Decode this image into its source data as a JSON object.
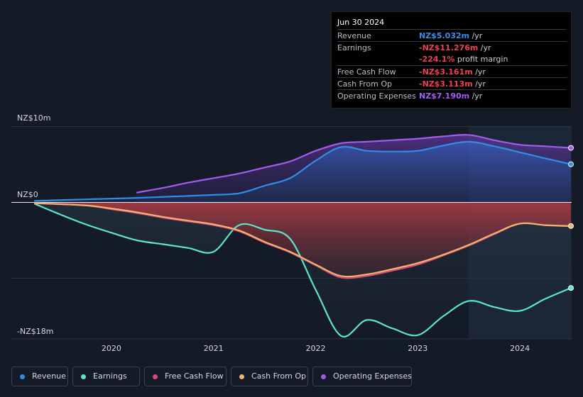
{
  "tooltip": {
    "date": "Jun 30 2024",
    "rows": [
      {
        "label": "Revenue",
        "value": "NZ$5.032m",
        "unit": " /yr",
        "color": "#3d8ee8"
      },
      {
        "label": "Earnings",
        "value": "-NZ$11.276m",
        "unit": " /yr",
        "color": "#f0404f"
      },
      {
        "label": "",
        "value": "-224.1%",
        "unit": " profit margin",
        "color": "#f0404f"
      },
      {
        "label": "Free Cash Flow",
        "value": "-NZ$3.161m",
        "unit": " /yr",
        "color": "#f0404f"
      },
      {
        "label": "Cash From Op",
        "value": "-NZ$3.113m",
        "unit": " /yr",
        "color": "#f0404f"
      },
      {
        "label": "Operating Expenses",
        "value": "NZ$7.190m",
        "unit": " /yr",
        "color": "#a55cf2"
      }
    ]
  },
  "legend": [
    {
      "label": "Revenue",
      "color": "#2f8fe8"
    },
    {
      "label": "Earnings",
      "color": "#5de3cf"
    },
    {
      "label": "Free Cash Flow",
      "color": "#d9487a"
    },
    {
      "label": "Cash From Op",
      "color": "#f0b46e"
    },
    {
      "label": "Operating Expenses",
      "color": "#a45af0"
    }
  ],
  "chart_data": {
    "type": "area",
    "title": "",
    "xlabel": "",
    "ylabel": "",
    "ylim": [
      -18,
      10
    ],
    "y_tick_labels": [
      {
        "value": 10,
        "label": "NZ$10m"
      },
      {
        "value": 0,
        "label": "NZ$0"
      },
      {
        "value": -18,
        "label": "-NZ$18m"
      }
    ],
    "x_tick_labels": [
      {
        "value": 2020,
        "label": "2020"
      },
      {
        "value": 2021,
        "label": "2021"
      },
      {
        "value": 2022,
        "label": "2022"
      },
      {
        "value": 2023,
        "label": "2023"
      },
      {
        "value": 2024,
        "label": "2024"
      }
    ],
    "xlim": [
      2019.0,
      2024.5
    ],
    "forecast_start": 2023.5,
    "series": [
      {
        "name": "Revenue",
        "color": "#2f8fe8",
        "points": [
          [
            2019.25,
            0.2
          ],
          [
            2019.75,
            0.4
          ],
          [
            2020.25,
            0.6
          ],
          [
            2020.75,
            0.85
          ],
          [
            2021.0,
            1.0
          ],
          [
            2021.25,
            1.2
          ],
          [
            2021.5,
            2.2
          ],
          [
            2021.75,
            3.2
          ],
          [
            2022.0,
            5.5
          ],
          [
            2022.25,
            7.3
          ],
          [
            2022.5,
            6.8
          ],
          [
            2022.75,
            6.7
          ],
          [
            2023.0,
            6.8
          ],
          [
            2023.25,
            7.5
          ],
          [
            2023.5,
            8.0
          ],
          [
            2023.75,
            7.4
          ],
          [
            2024.0,
            6.6
          ],
          [
            2024.25,
            5.8
          ],
          [
            2024.5,
            5.03
          ]
        ]
      },
      {
        "name": "Operating Expenses",
        "color": "#a45af0",
        "points": [
          [
            2020.25,
            1.3
          ],
          [
            2020.5,
            1.9
          ],
          [
            2020.75,
            2.6
          ],
          [
            2021.0,
            3.2
          ],
          [
            2021.25,
            3.8
          ],
          [
            2021.5,
            4.6
          ],
          [
            2021.75,
            5.4
          ],
          [
            2022.0,
            6.8
          ],
          [
            2022.25,
            7.8
          ],
          [
            2022.5,
            8.0
          ],
          [
            2022.75,
            8.2
          ],
          [
            2023.0,
            8.4
          ],
          [
            2023.25,
            8.7
          ],
          [
            2023.5,
            8.9
          ],
          [
            2023.75,
            8.2
          ],
          [
            2024.0,
            7.6
          ],
          [
            2024.25,
            7.4
          ],
          [
            2024.5,
            7.19
          ]
        ]
      },
      {
        "name": "Earnings",
        "color": "#5de3cf",
        "points": [
          [
            2019.25,
            -0.2
          ],
          [
            2019.5,
            -1.6
          ],
          [
            2019.75,
            -2.9
          ],
          [
            2020.0,
            -4.0
          ],
          [
            2020.25,
            -5.0
          ],
          [
            2020.5,
            -5.5
          ],
          [
            2020.75,
            -6.0
          ],
          [
            2021.0,
            -6.5
          ],
          [
            2021.25,
            -3.0
          ],
          [
            2021.5,
            -3.6
          ],
          [
            2021.75,
            -4.8
          ],
          [
            2022.0,
            -11.5
          ],
          [
            2022.25,
            -17.6
          ],
          [
            2022.5,
            -15.5
          ],
          [
            2022.75,
            -16.6
          ],
          [
            2023.0,
            -17.5
          ],
          [
            2023.25,
            -15.0
          ],
          [
            2023.5,
            -13.0
          ],
          [
            2023.75,
            -13.8
          ],
          [
            2024.0,
            -14.3
          ],
          [
            2024.25,
            -12.7
          ],
          [
            2024.5,
            -11.28
          ]
        ]
      },
      {
        "name": "Free Cash Flow",
        "color": "#d9487a",
        "points": [
          [
            2019.25,
            -0.1
          ],
          [
            2019.75,
            -0.4
          ],
          [
            2020.0,
            -0.9
          ],
          [
            2020.25,
            -1.4
          ],
          [
            2020.5,
            -2.0
          ],
          [
            2020.75,
            -2.5
          ],
          [
            2021.0,
            -3.0
          ],
          [
            2021.25,
            -3.8
          ],
          [
            2021.5,
            -5.3
          ],
          [
            2021.75,
            -6.6
          ],
          [
            2022.0,
            -8.3
          ],
          [
            2022.25,
            -9.9
          ],
          [
            2022.5,
            -9.7
          ],
          [
            2022.75,
            -9.0
          ],
          [
            2023.0,
            -8.2
          ],
          [
            2023.25,
            -7.0
          ],
          [
            2023.5,
            -5.7
          ],
          [
            2023.75,
            -4.2
          ],
          [
            2024.0,
            -2.8
          ],
          [
            2024.25,
            -3.0
          ],
          [
            2024.5,
            -3.16
          ]
        ]
      },
      {
        "name": "Cash From Op",
        "color": "#f0b46e",
        "points": [
          [
            2019.25,
            -0.1
          ],
          [
            2019.75,
            -0.4
          ],
          [
            2020.0,
            -0.8
          ],
          [
            2020.25,
            -1.3
          ],
          [
            2020.5,
            -1.9
          ],
          [
            2020.75,
            -2.4
          ],
          [
            2021.0,
            -2.9
          ],
          [
            2021.25,
            -3.7
          ],
          [
            2021.5,
            -5.2
          ],
          [
            2021.75,
            -6.5
          ],
          [
            2022.0,
            -8.2
          ],
          [
            2022.25,
            -9.7
          ],
          [
            2022.5,
            -9.5
          ],
          [
            2022.75,
            -8.8
          ],
          [
            2023.0,
            -8.0
          ],
          [
            2023.25,
            -6.9
          ],
          [
            2023.5,
            -5.6
          ],
          [
            2023.75,
            -4.1
          ],
          [
            2024.0,
            -2.8
          ],
          [
            2024.25,
            -3.0
          ],
          [
            2024.5,
            -3.11
          ]
        ]
      }
    ]
  }
}
